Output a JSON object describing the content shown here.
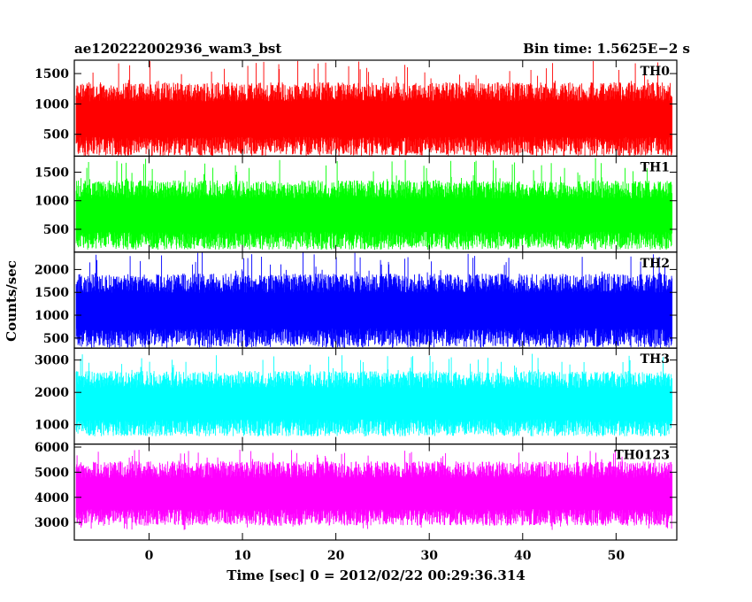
{
  "header": {
    "left_title": "ae120222002936_wam3_bst",
    "right_title": "Bin time: 1.5625E−2 s"
  },
  "chart_data": {
    "type": "line",
    "title": "ae120222002936_wam3_bst",
    "bin_time_label": "Bin time: 1.5625E−2 s",
    "xlabel": "Time [sec] 0 = 2012/02/22 00:29:36.314",
    "ylabel": "Counts/sec",
    "xlim": [
      -8,
      56.5
    ],
    "x_ticks": [
      0,
      10,
      20,
      30,
      40,
      50
    ],
    "x_tick_labels": [
      "0",
      "10",
      "20",
      "30",
      "40",
      "50"
    ],
    "grid": false,
    "legend": "none",
    "series": [
      {
        "name": "TH0",
        "color": "#ff0000",
        "x_range": [
          -7.8,
          56
        ],
        "ylim": [
          140,
          1720
        ],
        "y_ticks": [
          500,
          1000,
          1500
        ],
        "y_tick_labels": [
          "500",
          "1000",
          "1500"
        ],
        "typical_range": [
          300,
          1200
        ],
        "min": 160,
        "max": 1720
      },
      {
        "name": "TH1",
        "color": "#00ff00",
        "x_range": [
          -7.8,
          56
        ],
        "ylim": [
          100,
          1780
        ],
        "y_ticks": [
          500,
          1000,
          1500
        ],
        "y_tick_labels": [
          "500",
          "1000",
          "1500"
        ],
        "typical_range": [
          300,
          1200
        ],
        "min": 200,
        "max": 1750
      },
      {
        "name": "TH2",
        "color": "#0000ff",
        "x_range": [
          -7.8,
          56
        ],
        "ylim": [
          280,
          2380
        ],
        "y_ticks": [
          500,
          1000,
          1500,
          2000
        ],
        "y_tick_labels": [
          "500",
          "1000",
          "1500",
          "2000"
        ],
        "typical_range": [
          500,
          1700
        ],
        "min": 330,
        "max": 2380
      },
      {
        "name": "TH3",
        "color": "#00ffff",
        "x_range": [
          -7.8,
          56
        ],
        "ylim": [
          400,
          3370
        ],
        "y_ticks": [
          1000,
          2000,
          3000
        ],
        "y_tick_labels": [
          "1000",
          "2000",
          "3000"
        ],
        "typical_range": [
          900,
          2400
        ],
        "min": 650,
        "max": 3200
      },
      {
        "name": "TH0123",
        "color": "#ff00ff",
        "x_range": [
          -7.8,
          56
        ],
        "ylim": [
          2300,
          6120
        ],
        "y_ticks": [
          3000,
          4000,
          5000,
          6000
        ],
        "y_tick_labels": [
          "3000",
          "4000",
          "5000",
          "6000"
        ],
        "typical_range": [
          3200,
          5100
        ],
        "min": 2700,
        "max": 5900
      }
    ]
  }
}
